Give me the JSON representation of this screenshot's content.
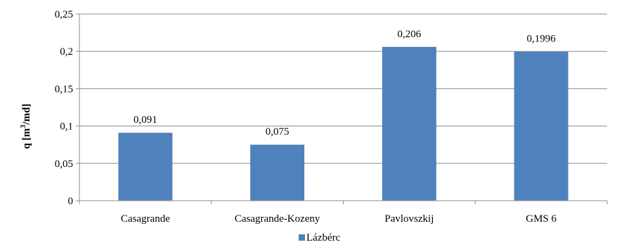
{
  "chart_data": {
    "type": "bar",
    "title": "",
    "xlabel": "",
    "ylabel_main": "q [m",
    "ylabel_sup": "3",
    "ylabel_tail": "/md]",
    "categories": [
      "Casagrande",
      "Casagrande-Kozeny",
      "Pavlovszkij",
      "GMS 6"
    ],
    "series": [
      {
        "name": "Lázbérc",
        "color": "#4f81bd",
        "values": [
          0.091,
          0.075,
          0.206,
          0.1996
        ],
        "labels": [
          "0,091",
          "0,075",
          "0,206",
          "0,1996"
        ]
      }
    ],
    "ylim": [
      0,
      0.25
    ],
    "yticks": [
      0,
      0.05,
      0.1,
      0.15,
      0.2,
      0.25
    ],
    "ytick_labels": [
      "0",
      "0,05",
      "0,1",
      "0,15",
      "0,2",
      "0,25"
    ],
    "grid": true,
    "legend_position": "bottom"
  }
}
